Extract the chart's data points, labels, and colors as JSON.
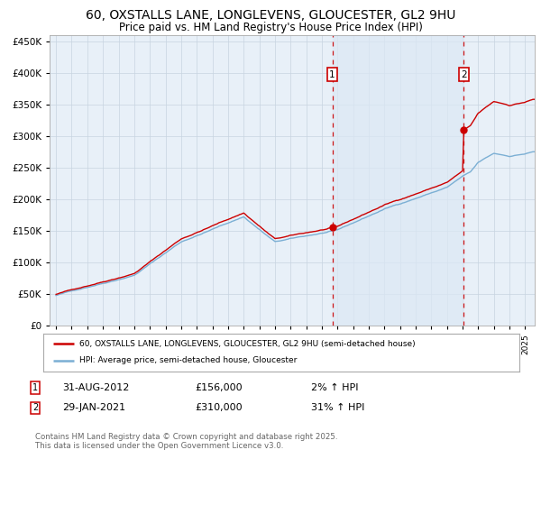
{
  "title": "60, OXSTALLS LANE, LONGLEVENS, GLOUCESTER, GL2 9HU",
  "subtitle": "Price paid vs. HM Land Registry's House Price Index (HPI)",
  "hpi_color": "#7bafd4",
  "price_color": "#cc0000",
  "bg_color": "#e8f0f8",
  "plot_bg": "#ffffff",
  "grid_color": "#c8d4e0",
  "annotation1": {
    "date": "31-AUG-2012",
    "price": 156000,
    "label": "1",
    "pct": "2%",
    "direction": "↑"
  },
  "annotation2": {
    "date": "29-JAN-2021",
    "price": 310000,
    "label": "2",
    "pct": "31%",
    "direction": "↑"
  },
  "legend_line1": "60, OXSTALLS LANE, LONGLEVENS, GLOUCESTER, GL2 9HU (semi-detached house)",
  "legend_line2": "HPI: Average price, semi-detached house, Gloucester",
  "footer": "Contains HM Land Registry data © Crown copyright and database right 2025.\nThis data is licensed under the Open Government Licence v3.0.",
  "ylim": [
    0,
    460000
  ],
  "yticks": [
    0,
    50000,
    100000,
    150000,
    200000,
    250000,
    300000,
    350000,
    400000,
    450000
  ],
  "xstart": 1994.6,
  "xend": 2025.6,
  "t1_year": 2012.667,
  "t2_year": 2021.083,
  "price1": 156000,
  "price2": 310000
}
